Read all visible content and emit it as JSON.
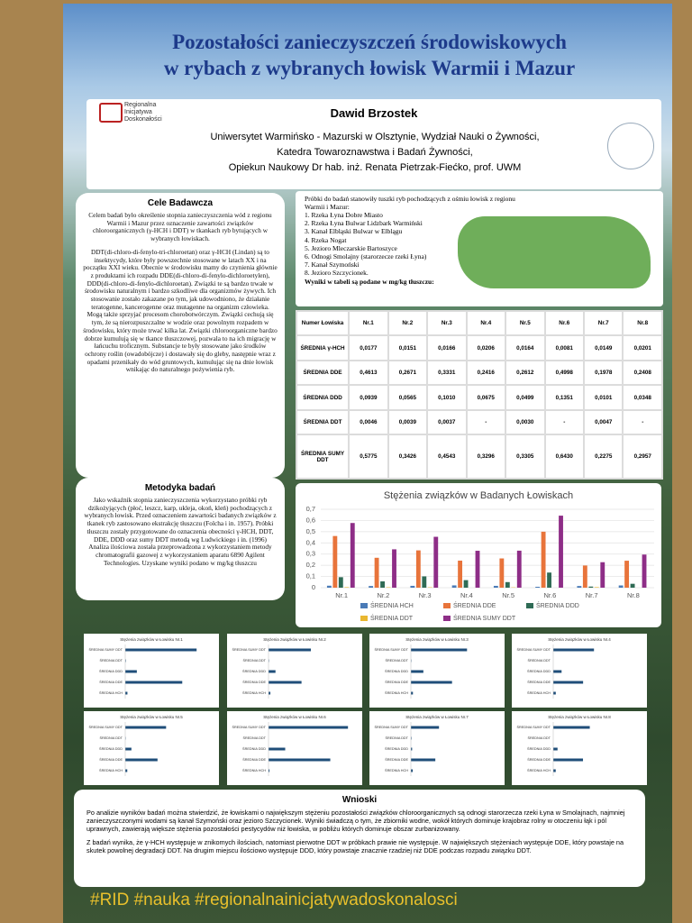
{
  "header": {
    "title_lines": [
      "Pozostałości zanieczyszczeń środowiskowych",
      "w rybach z wybranych łowisk Warmii i Mazur"
    ],
    "logo_text": [
      "Regionalna",
      "Inicjatywa",
      "Doskonałości"
    ],
    "author": "Dawid Brzostek",
    "affiliation": [
      "Uniwersytet Warmińsko - Mazurski w Olsztynie, Wydział Nauki o Żywności,",
      "Katedra Towaroznawstwa i Badań Żywności,",
      "Opiekun Naukowy Dr hab. inż. Renata Pietrzak-Fiećko, prof. UWM"
    ]
  },
  "goals": {
    "title": "Cele Badawcza",
    "paragraphs": [
      "Celem badań było określenie stopnia zanieczyszczenia wód z regionu Warmii i Mazur przez oznaczenie zawartości związków chloroorganicznych (γ-HCH i DDT) w tkankach ryb bytujących w wybranych łowiskach.",
      "DDT(di-chloro-di-fenylo-tri-chloroetan) oraz γ-HCH (Lindan) są to insektycydy, które były powszechnie stosowane w latach XX i na początku XXI wieku. Obecnie w środowisku mamy do czynienia głównie z produktami ich rozpadu DDE(di-chloro-di-fenylo-dichloroetylen), DDD(di-chloro-di-fenylo-dichloroetan). Związki te są bardzo trwałe w środowisku naturalnym i bardzo szkodliwe dla organizmów żywych. Ich stosowanie zostało zakazane po tym, jak udowodniono, że działanie teratogenne, kancerogenne oraz mutagenne na organizm człowieka. Mogą także sprzyjać procesom chorobotwórczym. Związki cechują się tym, że są nierozpuszczalne w wodzie oraz powolnym rozpadem w środowisku, który może trwać kilka lat. Związki chloroorganiczne bardzo dobrze kumulują się w tkance tłuszczowej, pozwala to na ich migrację w łańcuchu troficznym. Substancje te były stosowane jako środków ochrony roślin (owadobójcze) i dostawały się do gleby, następnie wraz z opadami przenikały do wód gruntowych, kumulując się na dnie łowisk wnikając do naturalnego pożywienia ryb."
    ]
  },
  "methods": {
    "title": "Metodyka badań",
    "text": "Jako wskaźnik stopnia zanieczyszczenia wykorzystano próbki ryb dzikożyjących (płoć, leszcz, karp, ukleja, okoń, kleń) pochodzących z wybranych łowisk. Przed oznaczeniem zawartości badanych związków z tkanek ryb zastosowano ekstrakcję tłuszczu (Folcha i in. 1957). Próbki tłuszczu zostały przygotowane do oznaczenia obecności γ-HCH, DDT, DDE, DDD oraz sumy DDT metodą wg Ludwickiego i in. (1996) Analiza ilościowa została przeprowadzona z wykorzystaniem metody chromatografii gazowej z wykorzystaniem aparatu 6890 Agilent Technologies. Uzyskane wyniki podano w mg/kg tłuszczu"
  },
  "samples": {
    "intro": "Próbki do badań stanowiły tuszki ryb pochodzących z ośmiu łowisk z regionu Warmii i Mazur:",
    "list": [
      "1. Rzeka Łyna Dobre Miasto",
      "2. Rzeka Łyna Bulwar Lidzbark Warmiński",
      "3. Kanał Elbląski Bulwar w Elblągu",
      "4. Rzeka Nogat",
      "5. Jezioro Mleczarskie Bartoszyce",
      "6. Odnogi Smolajny (starorzecze rzeki Łyna)",
      "7. Kanał Szymoński",
      "8. Jezioro Szczycionek."
    ],
    "note": "Wyniki w tabeli są podane w mg/kg tłuszczu:"
  },
  "table": {
    "header": [
      "Numer Łowiska",
      "Nr.1",
      "Nr.2",
      "Nr.3",
      "Nr.4",
      "Nr.5",
      "Nr.6",
      "Nr.7",
      "Nr.8"
    ],
    "rows": [
      [
        "ŚREDNIA γ-HCH",
        "0,0177",
        "0,0151",
        "0,0166",
        "0,0206",
        "0,0164",
        "0,0081",
        "0,0149",
        "0,0201"
      ],
      [
        "ŚREDNIA DDE",
        "0,4613",
        "0,2671",
        "0,3331",
        "0,2416",
        "0,2612",
        "0,4998",
        "0,1978",
        "0,2408"
      ],
      [
        "ŚREDNIA DDD",
        "0,0939",
        "0,0565",
        "0,1010",
        "0,0675",
        "0,0499",
        "0,1351",
        "0,0101",
        "0,0348"
      ],
      [
        "ŚREDNIA DDT",
        "0,0046",
        "0,0039",
        "0,0037",
        "-",
        "0,0030",
        "-",
        "0,0047",
        "-"
      ],
      [
        "ŚREDNIA SUMY DDT",
        "0,5775",
        "0,3426",
        "0,4543",
        "0,3296",
        "0,3305",
        "0,6430",
        "0,2275",
        "0,2957"
      ]
    ]
  },
  "chart_data": {
    "type": "bar",
    "title": "Stężenia związków w Badanych Łowiskach",
    "categories": [
      "Nr.1",
      "Nr.2",
      "Nr.3",
      "Nr.4",
      "Nr.5",
      "Nr.6",
      "Nr.7",
      "Nr.8"
    ],
    "series": [
      {
        "name": "ŚREDNIA HCH",
        "color": "#4a7bb7",
        "values": [
          0.0177,
          0.0151,
          0.0166,
          0.0206,
          0.0164,
          0.0081,
          0.0149,
          0.0201
        ]
      },
      {
        "name": "ŚREDNIA DDE",
        "color": "#e8743b",
        "values": [
          0.4613,
          0.2671,
          0.3331,
          0.2416,
          0.2612,
          0.4998,
          0.1978,
          0.2408
        ]
      },
      {
        "name": "ŚREDNIA DDD",
        "color": "#2f6b55",
        "values": [
          0.0939,
          0.0565,
          0.101,
          0.0675,
          0.0499,
          0.1351,
          0.0101,
          0.0348
        ]
      },
      {
        "name": "ŚREDNIA DDT",
        "color": "#e9b730",
        "values": [
          0.0046,
          0.0039,
          0.0037,
          null,
          0.003,
          null,
          0.0047,
          null
        ]
      },
      {
        "name": "ŚREDNIA SUMY DDT",
        "color": "#8e2e87",
        "values": [
          0.5775,
          0.3426,
          0.4543,
          0.3296,
          0.3305,
          0.643,
          0.2275,
          0.2957
        ]
      }
    ],
    "ylim": [
      0,
      0.7
    ],
    "yticks": [
      0,
      {
        "value": 0.1,
        "label": "0,1"
      },
      {
        "value": 0.2,
        "label": "0,2"
      },
      {
        "value": 0.3,
        "label": "0,3"
      },
      {
        "value": 0.4,
        "label": "0,4"
      },
      {
        "value": 0.5,
        "label": "0,5"
      },
      {
        "value": 0.6,
        "label": "0,6"
      },
      {
        "value": 0.7,
        "label": "0,7"
      }
    ],
    "grid": true,
    "legend": "bottom"
  },
  "small_charts": {
    "titles": [
      "Stężenia związków w Łowisku Nr.1",
      "Stężenia związków w Łowisku Nr.2",
      "Stężenia związków w Łowisku Nr.3",
      "Stężenia związków w Łowisku Nr.4",
      "Stężenia związków w Łowisku Nr.5",
      "Stężenia związków w Łowisku Nr.6",
      "Stężenia związków w Łowisku Nr.7",
      "Stężenia związków w Łowisku Nr.8"
    ]
  },
  "conclusions": {
    "title": "Wnioski",
    "paragraphs": [
      "Po analizie wyników badań można stwierdzić, że łowiskami o największym stężeniu pozostałości związków chloroorganicznych są odnogi starorzecza rzeki Łyna w Smolajnach, najmniej zanieczyszczonymi wodami są kanał Szymoński oraz jezioro Szczycionek. Wyniki świadczą o tym, że zbiorniki wodne, wokół których dominuje krajobraz rolny w otoczeniu łąk i pól uprawnych, zawierają większe stężenia pozostałości pestycydów niż łowiska, w pobliżu których dominuje obszar zurbanizowany.",
      "Z badań wynika, że γ-HCH występuje w znikomych ilościach, natomiast pierwotne DDT w próbkach prawie nie występuje. W największych stężeniach występuje DDE, który powstaje na skutek powolnej degradacji DDT. Na drugim miejscu ilościowo występuje DDD, który powstaje znacznie rzadziej niż DDE podczas rozpadu związku DDT."
    ]
  },
  "footer": {
    "hashtags": "#RID #nauka #regionalnainicjatywadoskonalosci"
  }
}
